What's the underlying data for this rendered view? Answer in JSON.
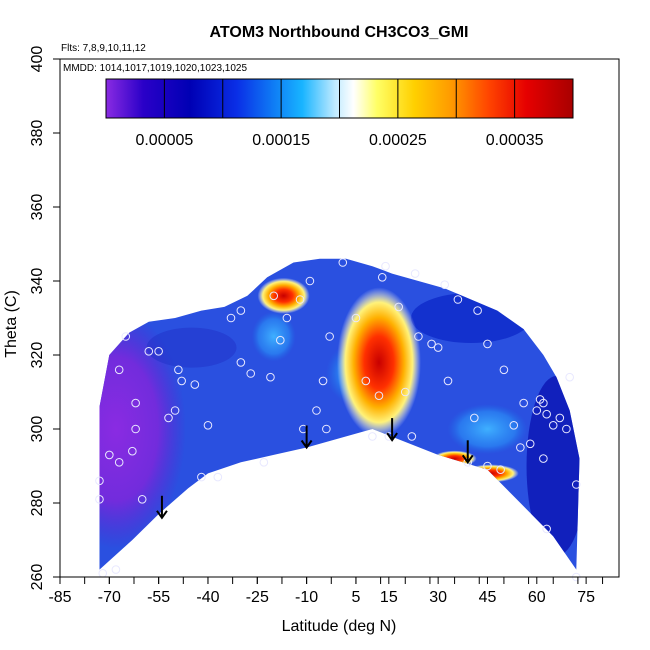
{
  "chart_data": {
    "type": "heatmap",
    "title": "ATOM3 Northbound CH3CO3_GMI",
    "flights_note": "Flts: 7,8,9,10,11,12",
    "dates_note": "MMDD: 1014,1017,1019,1020,1023,1025",
    "xlabel": "Latitude (deg N)",
    "ylabel": "Theta (C)",
    "xlim": [
      -85,
      85
    ],
    "ylim": [
      260,
      400
    ],
    "x_tick_labels": [
      "-85",
      "-70",
      "-55",
      "-40",
      "-25",
      "-10",
      "5",
      "15",
      "30",
      "45",
      "60",
      "75"
    ],
    "x_tick_values": [
      -85,
      -70,
      -55,
      -40,
      -25,
      -10,
      5,
      15,
      30,
      45,
      60,
      75
    ],
    "y_tick_labels": [
      "260",
      "280",
      "300",
      "320",
      "340",
      "360",
      "380",
      "400"
    ],
    "y_tick_values": [
      260,
      280,
      300,
      320,
      340,
      360,
      380,
      400
    ],
    "colorbar": {
      "min": 0.0,
      "max": 0.0004,
      "tick_labels": [
        "0.00005",
        "0.00015",
        "0.00025",
        "0.00035"
      ],
      "tick_values": [
        5e-05,
        0.00015,
        0.00025,
        0.00035
      ],
      "colors": [
        "#8a2be2",
        "#2a00c8",
        "#0000b4",
        "#0a2ee6",
        "#0f7df5",
        "#18b4ff",
        "#7fd6ff",
        "#ffffff",
        "#ffff66",
        "#ffd000",
        "#ff9900",
        "#ff4400",
        "#e60000",
        "#a80000"
      ]
    },
    "theta_surface": {
      "lat": [
        -73,
        -63,
        -55,
        -46,
        -40,
        -30,
        -20,
        -10,
        10,
        30,
        45,
        55,
        65,
        72
      ],
      "theta": [
        262,
        270,
        277,
        284,
        288,
        291,
        293,
        295,
        300,
        293,
        289,
        280,
        271,
        262
      ]
    },
    "top_boundary": {
      "lat": [
        -73,
        -70,
        -64,
        -58,
        -50,
        -42,
        -35,
        -28,
        -22,
        -14,
        -6,
        2,
        10,
        16,
        24,
        32,
        40,
        48,
        56,
        62,
        66,
        70,
        73
      ],
      "theta": [
        306,
        320,
        326,
        329,
        330,
        332,
        333,
        336,
        341,
        345,
        346,
        346,
        344,
        342,
        340,
        338,
        335,
        332,
        327,
        320,
        314,
        305,
        292
      ]
    },
    "high_anomalies": [
      {
        "lat": 12,
        "theta": 318,
        "value": 0.00034
      },
      {
        "lat": -17,
        "theta": 336,
        "value": 0.00031
      },
      {
        "lat": 35,
        "theta": 292,
        "value": 0.00026
      },
      {
        "lat": 46,
        "theta": 288,
        "value": 0.00031
      }
    ],
    "arrows": [
      {
        "lat": -54,
        "theta": 276
      },
      {
        "lat": -10,
        "theta": 295
      },
      {
        "lat": 16,
        "theta": 297
      },
      {
        "lat": 39,
        "theta": 291
      }
    ],
    "samples": [
      [
        -72,
        261
      ],
      [
        -68,
        262
      ],
      [
        -73,
        281
      ],
      [
        -73,
        286
      ],
      [
        -70,
        293
      ],
      [
        -67,
        291
      ],
      [
        -62,
        300
      ],
      [
        -62,
        307
      ],
      [
        -67,
        316
      ],
      [
        -65,
        325
      ],
      [
        -58,
        321
      ],
      [
        -55,
        321
      ],
      [
        -49,
        316
      ],
      [
        -50,
        305
      ],
      [
        -48,
        313
      ],
      [
        -44,
        312
      ],
      [
        -40,
        301
      ],
      [
        -37,
        287
      ],
      [
        -42,
        287
      ],
      [
        -30,
        318
      ],
      [
        -27,
        315
      ],
      [
        -21,
        314
      ],
      [
        -18,
        324
      ],
      [
        -20,
        336
      ],
      [
        -33,
        330
      ],
      [
        -30,
        332
      ],
      [
        -23,
        291
      ],
      [
        -11,
        300
      ],
      [
        -4,
        300
      ],
      [
        -7,
        305
      ],
      [
        -3,
        325
      ],
      [
        -9,
        340
      ],
      [
        1,
        345
      ],
      [
        8,
        313
      ],
      [
        12,
        309
      ],
      [
        10,
        298
      ],
      [
        15,
        298
      ],
      [
        22,
        298
      ],
      [
        20,
        310
      ],
      [
        24,
        325
      ],
      [
        28,
        323
      ],
      [
        30,
        322
      ],
      [
        32,
        339
      ],
      [
        36,
        335
      ],
      [
        42,
        332
      ],
      [
        45,
        323
      ],
      [
        50,
        316
      ],
      [
        53,
        301
      ],
      [
        58,
        296
      ],
      [
        56,
        307
      ],
      [
        60,
        305
      ],
      [
        61,
        308
      ],
      [
        62,
        307
      ],
      [
        63,
        304
      ],
      [
        65,
        301
      ],
      [
        67,
        303
      ],
      [
        70,
        314
      ],
      [
        69,
        300
      ],
      [
        72,
        285
      ],
      [
        72,
        260
      ],
      [
        62,
        292
      ],
      [
        63,
        273
      ],
      [
        39,
        291
      ],
      [
        45,
        290
      ],
      [
        49,
        289
      ],
      [
        18,
        333
      ],
      [
        13,
        341
      ],
      [
        23,
        342
      ],
      [
        14,
        344
      ],
      [
        -16,
        330
      ],
      [
        -12,
        335
      ],
      [
        -60,
        281
      ],
      [
        -63,
        294
      ],
      [
        -52,
        303
      ],
      [
        -5,
        313
      ],
      [
        5,
        330
      ],
      [
        41,
        303
      ],
      [
        33,
        313
      ],
      [
        55,
        295
      ]
    ]
  }
}
